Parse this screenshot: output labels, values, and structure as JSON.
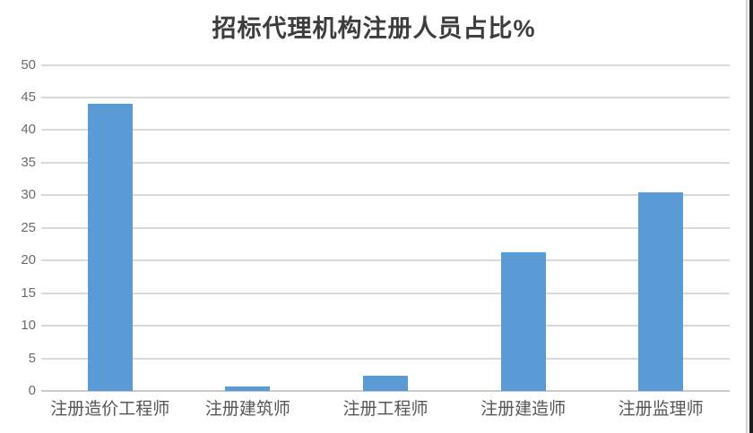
{
  "chart_data": {
    "type": "bar",
    "title": "招标代理机构注册人员占比%",
    "categories": [
      "注册造价工程师",
      "注册建筑师",
      "注册工程师",
      "注册建造师",
      "注册监理师"
    ],
    "values": [
      44,
      0.7,
      2.4,
      21.3,
      30.4
    ],
    "xlabel": "",
    "ylabel": "",
    "ylim": [
      0,
      50
    ],
    "ytick_step": 5,
    "ytick_labels": [
      "0",
      "5",
      "10",
      "15",
      "20",
      "25",
      "30",
      "35",
      "40",
      "45",
      "50"
    ],
    "grid": true,
    "legend": false,
    "bar_color": "#5b9bd5",
    "grid_color": "#d9d9d9",
    "tick_label_color": "#6b6b6b",
    "category_label_color": "#565656",
    "title_color": "#3d3d3d",
    "background_color": "#ffffff"
  }
}
